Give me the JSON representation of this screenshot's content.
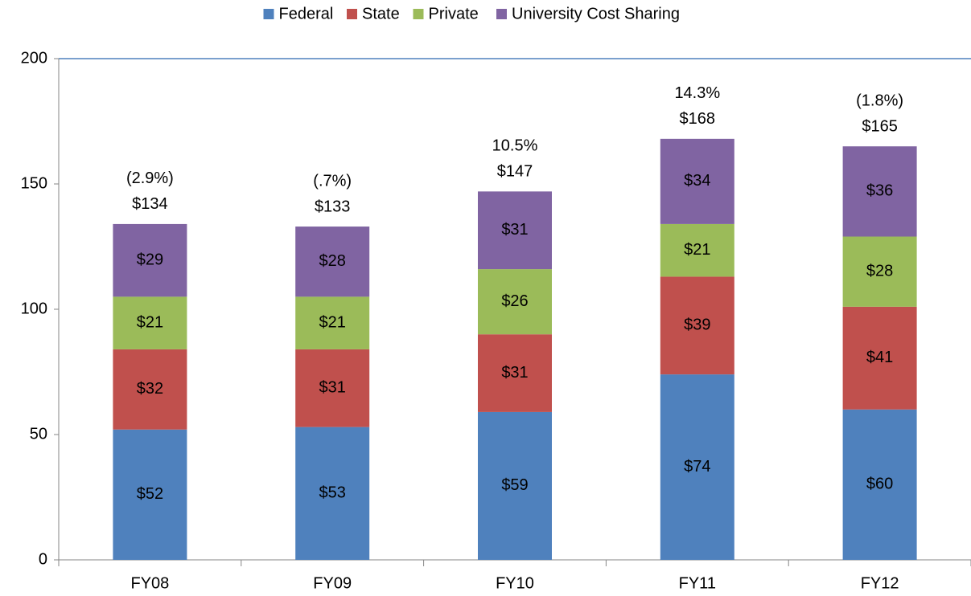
{
  "chart_data": {
    "type": "stacked_bar",
    "categories": [
      "FY08",
      "FY09",
      "FY10",
      "FY11",
      "FY12"
    ],
    "series": [
      {
        "name": "Federal",
        "color": "#4f81bd",
        "values": [
          52,
          53,
          59,
          74,
          60
        ],
        "value_labels": [
          "$52",
          "$53",
          "$59",
          "$74",
          "$60"
        ]
      },
      {
        "name": "State",
        "color": "#c0504d",
        "values": [
          32,
          31,
          31,
          39,
          41
        ],
        "value_labels": [
          "$32",
          "$31",
          "$31",
          "$39",
          "$41"
        ]
      },
      {
        "name": "Private",
        "color": "#9bbb59",
        "values": [
          21,
          21,
          26,
          21,
          28
        ],
        "value_labels": [
          "$21",
          "$21",
          "$26",
          "$21",
          "$28"
        ]
      },
      {
        "name": "University Cost Sharing",
        "color": "#8064a2",
        "values": [
          29,
          28,
          31,
          34,
          36
        ],
        "value_labels": [
          "$29",
          "$28",
          "$31",
          "$34",
          "$36"
        ]
      }
    ],
    "totals": {
      "values": [
        134,
        133,
        147,
        168,
        165
      ],
      "value_labels": [
        "$134",
        "$133",
        "$147",
        "$168",
        "$165"
      ]
    },
    "changes": {
      "values": [
        -2.9,
        -0.7,
        10.5,
        14.3,
        -1.8
      ],
      "value_labels": [
        "(2.9%)",
        "(.7%)",
        "10.5%",
        "14.3%",
        "(1.8%)"
      ]
    },
    "ylim": [
      0,
      200
    ],
    "yticks": [
      0,
      50,
      100,
      150,
      200
    ],
    "grid": false,
    "legend": "top"
  }
}
